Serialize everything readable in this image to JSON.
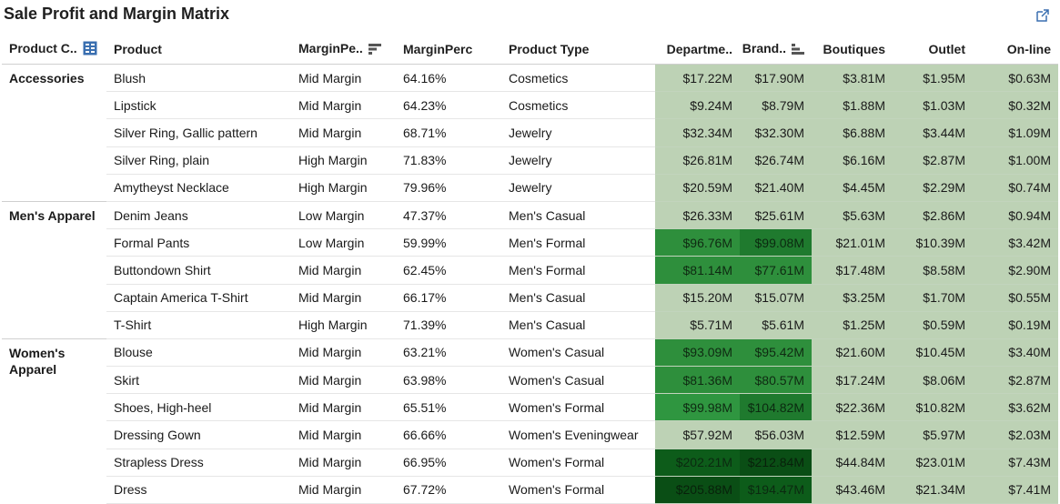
{
  "title": "Sale Profit and Margin Matrix",
  "columns": {
    "category": "Product C..",
    "product": "Product",
    "margin_level": "MarginPe..",
    "margin_perc": "MarginPerc",
    "product_type": "Product Type",
    "department": "Departme..",
    "brand": "Brand..",
    "boutiques": "Boutiques",
    "outlet": "Outlet",
    "online": "On-line"
  },
  "groups": [
    {
      "category": "Accessories",
      "rows": [
        {
          "product": "Blush",
          "margin_level": "Mid Margin",
          "margin_perc": "64.16%",
          "product_type": "Cosmetics",
          "department": "$17.22M",
          "brand": "$17.90M",
          "boutiques": "$3.81M",
          "outlet": "$1.95M",
          "online": "$0.63M",
          "dept_shade": 0,
          "brand_shade": 0
        },
        {
          "product": "Lipstick",
          "margin_level": "Mid Margin",
          "margin_perc": "64.23%",
          "product_type": "Cosmetics",
          "department": "$9.24M",
          "brand": "$8.79M",
          "boutiques": "$1.88M",
          "outlet": "$1.03M",
          "online": "$0.32M",
          "dept_shade": 0,
          "brand_shade": 0
        },
        {
          "product": "Silver Ring, Gallic pattern",
          "margin_level": "Mid Margin",
          "margin_perc": "68.71%",
          "product_type": "Jewelry",
          "department": "$32.34M",
          "brand": "$32.30M",
          "boutiques": "$6.88M",
          "outlet": "$3.44M",
          "online": "$1.09M",
          "dept_shade": 0,
          "brand_shade": 0
        },
        {
          "product": "Silver Ring, plain",
          "margin_level": "High Margin",
          "margin_perc": "71.83%",
          "product_type": "Jewelry",
          "department": "$26.81M",
          "brand": "$26.74M",
          "boutiques": "$6.16M",
          "outlet": "$2.87M",
          "online": "$1.00M",
          "dept_shade": 0,
          "brand_shade": 0
        },
        {
          "product": "Amytheyst Necklace",
          "margin_level": "High Margin",
          "margin_perc": "79.96%",
          "product_type": "Jewelry",
          "department": "$20.59M",
          "brand": "$21.40M",
          "boutiques": "$4.45M",
          "outlet": "$2.29M",
          "online": "$0.74M",
          "dept_shade": 0,
          "brand_shade": 0
        }
      ]
    },
    {
      "category": "Men's Apparel",
      "rows": [
        {
          "product": "Denim Jeans",
          "margin_level": "Low Margin",
          "margin_perc": "47.37%",
          "product_type": "Men's Casual",
          "department": "$26.33M",
          "brand": "$25.61M",
          "boutiques": "$5.63M",
          "outlet": "$2.86M",
          "online": "$0.94M",
          "dept_shade": 0,
          "brand_shade": 0
        },
        {
          "product": "Formal Pants",
          "margin_level": "Low Margin",
          "margin_perc": "59.99%",
          "product_type": "Men's Formal",
          "department": "$96.76M",
          "brand": "$99.08M",
          "boutiques": "$21.01M",
          "outlet": "$10.39M",
          "online": "$3.42M",
          "dept_shade": 2,
          "brand_shade": 3
        },
        {
          "product": "Buttondown Shirt",
          "margin_level": "Mid Margin",
          "margin_perc": "62.45%",
          "product_type": "Men's Formal",
          "department": "$81.14M",
          "brand": "$77.61M",
          "boutiques": "$17.48M",
          "outlet": "$8.58M",
          "online": "$2.90M",
          "dept_shade": 2,
          "brand_shade": 2
        },
        {
          "product": "Captain America T-Shirt",
          "margin_level": "Mid Margin",
          "margin_perc": "66.17%",
          "product_type": "Men's Casual",
          "department": "$15.20M",
          "brand": "$15.07M",
          "boutiques": "$3.25M",
          "outlet": "$1.70M",
          "online": "$0.55M",
          "dept_shade": 0,
          "brand_shade": 0
        },
        {
          "product": "T-Shirt",
          "margin_level": "High Margin",
          "margin_perc": "71.39%",
          "product_type": "Men's Casual",
          "department": "$5.71M",
          "brand": "$5.61M",
          "boutiques": "$1.25M",
          "outlet": "$0.59M",
          "online": "$0.19M",
          "dept_shade": 0,
          "brand_shade": 0
        }
      ]
    },
    {
      "category": "Women's Apparel",
      "rows": [
        {
          "product": "Blouse",
          "margin_level": "Mid Margin",
          "margin_perc": "63.21%",
          "product_type": "Women's Casual",
          "department": "$93.09M",
          "brand": "$95.42M",
          "boutiques": "$21.60M",
          "outlet": "$10.45M",
          "online": "$3.40M",
          "dept_shade": 2,
          "brand_shade": 2
        },
        {
          "product": "Skirt",
          "margin_level": "Mid Margin",
          "margin_perc": "63.98%",
          "product_type": "Women's Casual",
          "department": "$81.36M",
          "brand": "$80.57M",
          "boutiques": "$17.24M",
          "outlet": "$8.06M",
          "online": "$2.87M",
          "dept_shade": 2,
          "brand_shade": 2
        },
        {
          "product": "Shoes, High-heel",
          "margin_level": "Mid Margin",
          "margin_perc": "65.51%",
          "product_type": "Women's Formal",
          "department": "$99.98M",
          "brand": "$104.82M",
          "boutiques": "$22.36M",
          "outlet": "$10.82M",
          "online": "$3.62M",
          "dept_shade": 1,
          "brand_shade": 3
        },
        {
          "product": "Dressing Gown",
          "margin_level": "Mid Margin",
          "margin_perc": "66.66%",
          "product_type": "Women's Eveningwear",
          "department": "$57.92M",
          "brand": "$56.03M",
          "boutiques": "$12.59M",
          "outlet": "$5.97M",
          "online": "$2.03M",
          "dept_shade": 0,
          "brand_shade": 0
        },
        {
          "product": "Strapless Dress",
          "margin_level": "Mid Margin",
          "margin_perc": "66.95%",
          "product_type": "Women's Formal",
          "department": "$202.21M",
          "brand": "$212.84M",
          "boutiques": "$44.84M",
          "outlet": "$23.01M",
          "online": "$7.43M",
          "dept_shade": 4,
          "brand_shade": 5
        },
        {
          "product": "Dress",
          "margin_level": "Mid Margin",
          "margin_perc": "67.72%",
          "product_type": "Women's Formal",
          "department": "$205.88M",
          "brand": "$194.47M",
          "boutiques": "$43.46M",
          "outlet": "$21.34M",
          "online": "$7.41M",
          "dept_shade": 5,
          "brand_shade": 4
        }
      ]
    }
  ],
  "colors": {
    "base_cell": "#bdd2b5",
    "shade_1": "#2f9640",
    "shade_2": "#2e8f3c",
    "shade_3": "#1f7a2e",
    "shade_4": "#0d5c1a",
    "shade_5": "#0a4e15"
  },
  "icons": {
    "popout": "popout-icon",
    "category_header": "grid-select-icon",
    "margin_header": "sort-desc-icon",
    "brand_header": "sort-asc-icon"
  }
}
